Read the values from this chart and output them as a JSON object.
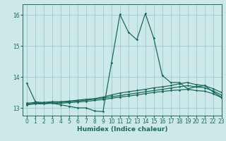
{
  "title": "",
  "xlabel": "Humidex (Indice chaleur)",
  "ylabel": "",
  "xlim": [
    -0.5,
    23
  ],
  "ylim": [
    12.75,
    16.35
  ],
  "bg_color": "#cce8e8",
  "grid_color": "#99cccc",
  "line_color": "#1a6b5a",
  "curves": [
    [
      13.8,
      13.2,
      13.15,
      13.15,
      13.1,
      13.05,
      13.0,
      13.0,
      12.9,
      12.88,
      14.45,
      16.02,
      15.45,
      15.2,
      16.05,
      15.25,
      14.05,
      13.82,
      13.82,
      13.62,
      13.68,
      13.72,
      13.52,
      13.35
    ],
    [
      13.15,
      13.18,
      13.18,
      13.2,
      13.2,
      13.22,
      13.25,
      13.28,
      13.3,
      13.35,
      13.42,
      13.48,
      13.52,
      13.56,
      13.6,
      13.65,
      13.68,
      13.72,
      13.78,
      13.82,
      13.75,
      13.72,
      13.62,
      13.5
    ],
    [
      13.12,
      13.15,
      13.15,
      13.18,
      13.18,
      13.2,
      13.22,
      13.25,
      13.28,
      13.32,
      13.36,
      13.4,
      13.44,
      13.48,
      13.52,
      13.56,
      13.6,
      13.64,
      13.68,
      13.72,
      13.68,
      13.65,
      13.55,
      13.42
    ],
    [
      13.1,
      13.13,
      13.13,
      13.15,
      13.15,
      13.17,
      13.19,
      13.21,
      13.24,
      13.27,
      13.31,
      13.35,
      13.38,
      13.42,
      13.46,
      13.5,
      13.53,
      13.56,
      13.58,
      13.6,
      13.56,
      13.54,
      13.46,
      13.33
    ]
  ],
  "x_ticks": [
    0,
    1,
    2,
    3,
    4,
    5,
    6,
    7,
    8,
    9,
    10,
    11,
    12,
    13,
    14,
    15,
    16,
    17,
    18,
    19,
    20,
    21,
    22,
    23
  ],
  "y_ticks": [
    13,
    14,
    15,
    16
  ],
  "marker": "D",
  "markersize": 1.8,
  "linewidth": 0.9,
  "tick_fontsize": 5.5,
  "label_fontsize": 6.5
}
